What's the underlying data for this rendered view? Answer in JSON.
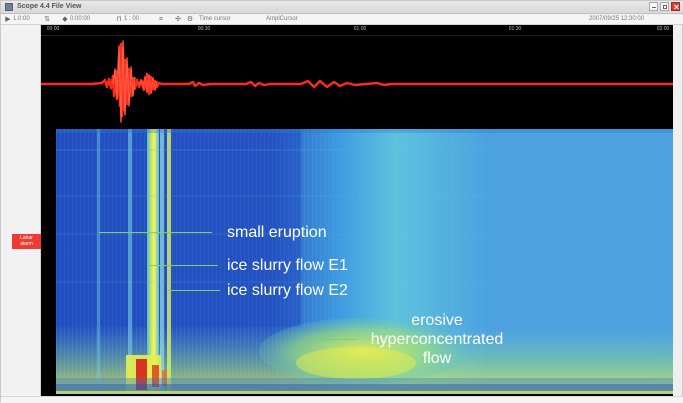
{
  "window": {
    "title": "Scope 4.4 File View"
  },
  "toolbar": {
    "zoom_value": "1.0:00",
    "time_value": "0:00:00",
    "scale_value": "1 : 00",
    "mode_value": "Time cursor",
    "amplitude_value": "AmplCursor",
    "timestamp": "2007/09/25 12:30:00"
  },
  "left_panel": {
    "status_tag": "Lahar\nalarm"
  },
  "axis": {
    "ticks": [
      "00:00",
      "00:30",
      "01:00",
      "01:30",
      "02:00"
    ]
  },
  "annotations": {
    "small_eruption": "small eruption",
    "ice_slurry_flow_e1": "ice slurry flow E1",
    "ice_slurry_flow_e2": "ice slurry flow E2",
    "erosive_line_1": "erosive",
    "erosive_line_2": "hyperconcentrated",
    "erosive_line_3": "flow"
  },
  "icons": {
    "title": "app-icon",
    "minimize": "minimize-icon",
    "maximize": "maximize-icon",
    "close": "close-icon",
    "play": "play-icon",
    "zoom": "zoom-icon",
    "cursor": "cursor-icon",
    "gear": "gear-icon"
  },
  "colors": {
    "seismogram": "#ff2b1a",
    "annotation_line": "#7ed16a",
    "spectrogram_low": "#214fbf",
    "spectrogram_mid": "#5bc5de",
    "spectrogram_high": "#f0ef45",
    "spectrogram_peak": "#d62b1d"
  }
}
